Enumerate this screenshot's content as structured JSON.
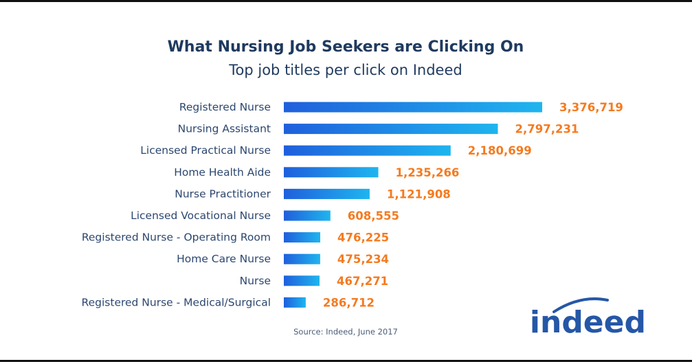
{
  "chart_data": {
    "type": "bar",
    "orientation": "horizontal",
    "title": "What Nursing Job Seekers are Clicking On",
    "subtitle": "Top job titles per click on Indeed",
    "categories": [
      "Registered Nurse",
      "Nursing Assistant",
      "Licensed Practical Nurse",
      "Home Health Aide",
      "Nurse Practitioner",
      "Licensed Vocational Nurse",
      "Registered Nurse - Operating Room",
      "Home Care Nurse",
      "Nurse",
      "Registered Nurse - Medical/Surgical"
    ],
    "values": [
      3376719,
      2797231,
      2180699,
      1235266,
      1121908,
      608555,
      476225,
      475234,
      467271,
      286712
    ],
    "value_labels": [
      "3,376,719",
      "2,797,231",
      "2,180,699",
      "1,235,266",
      "1,121,908",
      "608,555",
      "476,225",
      "475,234",
      "467,271",
      "286,712"
    ],
    "source": "Source: Indeed, June 2017",
    "grid": false,
    "legend": "none"
  },
  "brand": {
    "logo_text": "indeed"
  },
  "colors": {
    "title": "#1f3a5f",
    "bar_start": "#1f5fdc",
    "bar_end": "#1fb5ef",
    "value_label": "#f47b20",
    "logo": "#2557a7"
  }
}
